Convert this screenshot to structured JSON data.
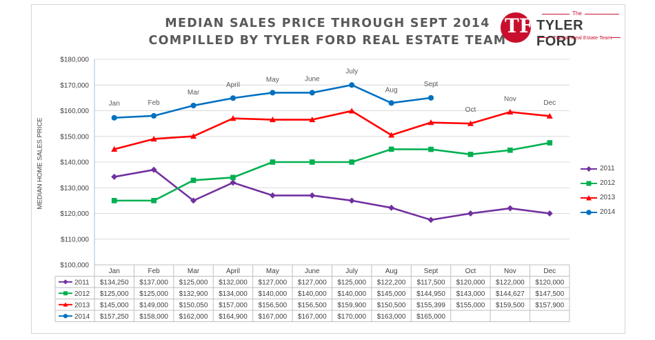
{
  "title_line1": "MEDIAN SALES PRICE THROUGH SEPT 2014",
  "title_line2": "COMPILLED BY TYLER FORD REAL ESTATE TEAM",
  "logo": {
    "the": "The",
    "brand": "TYLER FORD",
    "tagline": "Tucson Real Estate Team",
    "mark": "TF",
    "color": "#c8102e"
  },
  "chart_data": {
    "type": "line",
    "ylabel": "MEDIAN HOME SALES PRICE",
    "ylim": [
      100000,
      180000
    ],
    "ytick_step": 10000,
    "yticks": [
      "$100,000",
      "$110,000",
      "$120,000",
      "$130,000",
      "$140,000",
      "$150,000",
      "$160,000",
      "$170,000",
      "$180,000"
    ],
    "categories": [
      "Jan",
      "Feb",
      "Mar",
      "April",
      "May",
      "June",
      "July",
      "Aug",
      "Sept",
      "Oct",
      "Nov",
      "Dec"
    ],
    "series": [
      {
        "name": "2011",
        "color": "#7030a0",
        "marker": "diamond",
        "values": [
          134250,
          137000,
          125000,
          132000,
          127000,
          127000,
          125000,
          122200,
          117500,
          120000,
          122000,
          120000
        ],
        "labels": [
          "$134,250",
          "$137,000",
          "$125,000",
          "$132,000",
          "$127,000",
          "$127,000",
          "$125,000",
          "$122,200",
          "$117,500",
          "$120,000",
          "$122,000",
          "$120,000"
        ]
      },
      {
        "name": "2012",
        "color": "#00b050",
        "marker": "square",
        "values": [
          125000,
          125000,
          132900,
          134000,
          140000,
          140000,
          140000,
          145000,
          144950,
          143000,
          144627,
          147500
        ],
        "labels": [
          "$125,000",
          "$125,000",
          "$132,900",
          "$134,000",
          "$140,000",
          "$140,000",
          "$140,000",
          "$145,000",
          "$144,950",
          "$143,000",
          "$144,627",
          "$147,500"
        ]
      },
      {
        "name": "2013",
        "color": "#ff0000",
        "marker": "triangle",
        "values": [
          145000,
          149000,
          150050,
          157000,
          156500,
          156500,
          159900,
          150500,
          155399,
          155000,
          159500,
          157900
        ],
        "labels": [
          "$145,000",
          "$149,000",
          "$150,050",
          "$157,000",
          "$156,500",
          "$156,500",
          "$159,900",
          "$150,500",
          "$155,399",
          "$155,000",
          "$159,500",
          "$157,900"
        ]
      },
      {
        "name": "2014",
        "color": "#0070c0",
        "marker": "circle",
        "values": [
          157250,
          158000,
          162000,
          164900,
          167000,
          167000,
          170000,
          163000,
          165000,
          null,
          null,
          null
        ],
        "labels": [
          "$157,250",
          "$158,000",
          "$162,000",
          "$164,900",
          "$167,000",
          "$167,000",
          "$170,000",
          "$163,000",
          "$165,000",
          "",
          "",
          ""
        ]
      }
    ],
    "annotations": [
      {
        "text": "Jan",
        "x": "Jan",
        "y": 162000
      },
      {
        "text": "Feb",
        "x": "Feb",
        "y": 162300
      },
      {
        "text": "Mar",
        "x": "Mar",
        "y": 166300
      },
      {
        "text": "April",
        "x": "April",
        "y": 169300
      },
      {
        "text": "May",
        "x": "May",
        "y": 171300
      },
      {
        "text": "June",
        "x": "June",
        "y": 171500
      },
      {
        "text": "July",
        "x": "July",
        "y": 174500
      },
      {
        "text": "Aug",
        "x": "Aug",
        "y": 167300
      },
      {
        "text": "Sept",
        "x": "Sept",
        "y": 169500
      },
      {
        "text": "Oct",
        "x": "Oct",
        "y": 159600
      },
      {
        "text": "Nov",
        "x": "Nov",
        "y": 163800
      },
      {
        "text": "Dec",
        "x": "Dec",
        "y": 162300
      }
    ],
    "legend_position": "right",
    "grid": true,
    "data_table": true
  }
}
